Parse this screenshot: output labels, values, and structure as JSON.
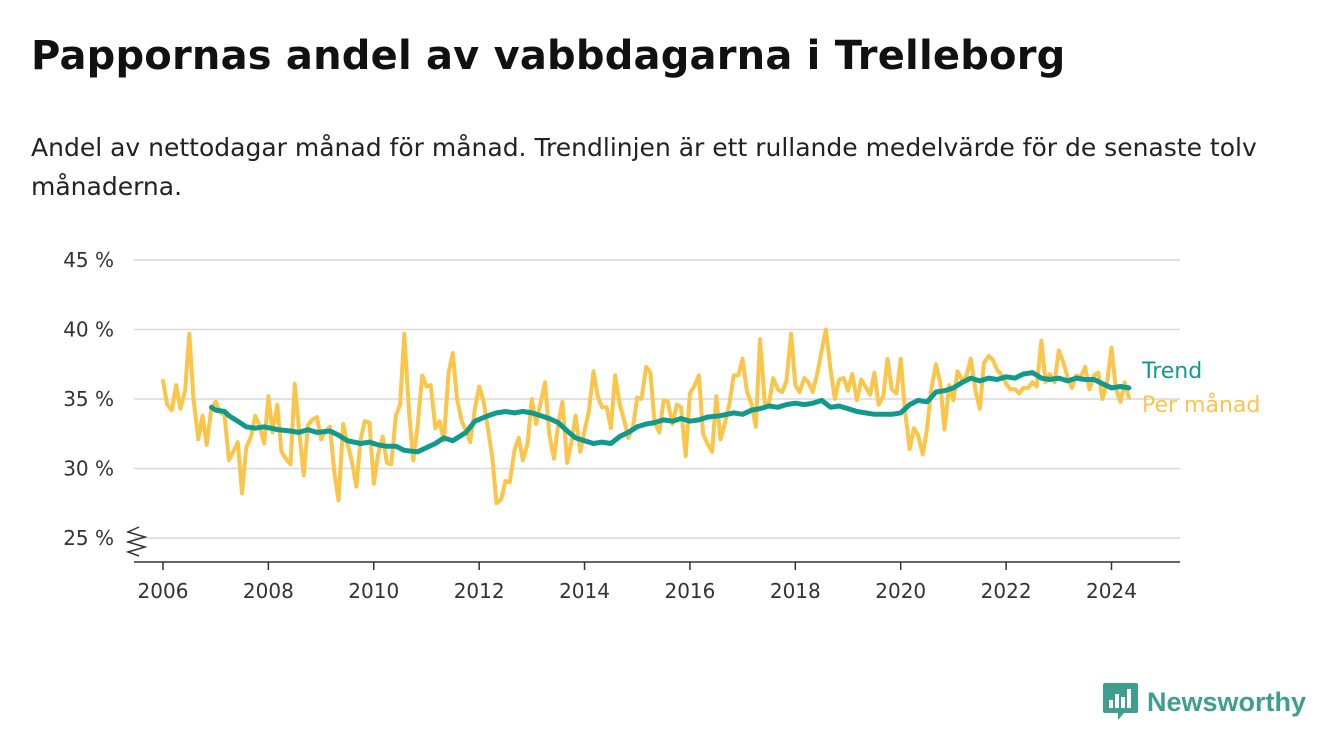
{
  "page": {
    "title": "Pappornas andel av vabbdagarna i Trelleborg",
    "subtitle": "Andel av nettodagar månad för månad. Trendlinjen är ett rullande medelvärde för de senaste tolv månaderna."
  },
  "brand": {
    "name": "Newsworthy",
    "icon": "newsworthy-logo-icon",
    "color": "#3f9e8f"
  },
  "colors": {
    "monthly": "#fbc54a",
    "trend": "#12998d",
    "grid": "#d9d9d9",
    "axis": "#333333"
  },
  "chart_data": {
    "type": "line",
    "title": "Pappornas andel av vabbdagarna i Trelleborg",
    "xlabel": "",
    "ylabel": "",
    "ylim": [
      25,
      45
    ],
    "xlim": [
      2005.45,
      2025.3
    ],
    "y_ticks": [
      25,
      30,
      35,
      40,
      45
    ],
    "y_tick_labels": [
      "25 %",
      "30 %",
      "35 %",
      "40 %",
      "45 %"
    ],
    "x_ticks": [
      2006,
      2008,
      2010,
      2012,
      2014,
      2016,
      2018,
      2020,
      2022,
      2024
    ],
    "x_tick_labels": [
      "2006",
      "2008",
      "2010",
      "2012",
      "2014",
      "2016",
      "2018",
      "2020",
      "2022",
      "2024"
    ],
    "grid": true,
    "axis_break": true,
    "legend": "inline labels at right end of lines",
    "series": [
      {
        "name": "Per månad",
        "color": "#fbc54a",
        "x": [
          2006.0,
          2006.08,
          2006.17,
          2006.25,
          2006.33,
          2006.42,
          2006.5,
          2006.58,
          2006.67,
          2006.75,
          2006.83,
          2006.92,
          2007.0,
          2007.08,
          2007.17,
          2007.25,
          2007.33,
          2007.42,
          2007.5,
          2007.58,
          2007.67,
          2007.75,
          2007.83,
          2007.92,
          2008.0,
          2008.08,
          2008.17,
          2008.25,
          2008.33,
          2008.42,
          2008.5,
          2008.58,
          2008.67,
          2008.75,
          2008.83,
          2008.92,
          2009.0,
          2009.08,
          2009.17,
          2009.25,
          2009.33,
          2009.42,
          2009.5,
          2009.58,
          2009.67,
          2009.75,
          2009.83,
          2009.92,
          2010.0,
          2010.08,
          2010.17,
          2010.25,
          2010.33,
          2010.42,
          2010.5,
          2010.58,
          2010.67,
          2010.75,
          2010.83,
          2010.92,
          2011.0,
          2011.08,
          2011.17,
          2011.25,
          2011.33,
          2011.42,
          2011.5,
          2011.58,
          2011.67,
          2011.75,
          2011.83,
          2011.92,
          2012.0,
          2012.08,
          2012.17,
          2012.25,
          2012.33,
          2012.42,
          2012.5,
          2012.58,
          2012.67,
          2012.75,
          2012.83,
          2012.92,
          2013.0,
          2013.08,
          2013.17,
          2013.25,
          2013.33,
          2013.42,
          2013.5,
          2013.58,
          2013.67,
          2013.75,
          2013.83,
          2013.92,
          2014.0,
          2014.08,
          2014.17,
          2014.25,
          2014.33,
          2014.42,
          2014.5,
          2014.58,
          2014.67,
          2014.75,
          2014.83,
          2014.92,
          2015.0,
          2015.08,
          2015.17,
          2015.25,
          2015.33,
          2015.42,
          2015.5,
          2015.58,
          2015.67,
          2015.75,
          2015.83,
          2015.92,
          2016.0,
          2016.08,
          2016.17,
          2016.25,
          2016.33,
          2016.42,
          2016.5,
          2016.58,
          2016.67,
          2016.75,
          2016.83,
          2016.92,
          2017.0,
          2017.08,
          2017.17,
          2017.25,
          2017.33,
          2017.42,
          2017.5,
          2017.58,
          2017.67,
          2017.75,
          2017.83,
          2017.92,
          2018.0,
          2018.08,
          2018.17,
          2018.25,
          2018.33,
          2018.42,
          2018.5,
          2018.58,
          2018.67,
          2018.75,
          2018.83,
          2018.92,
          2019.0,
          2019.08,
          2019.17,
          2019.25,
          2019.33,
          2019.42,
          2019.5,
          2019.58,
          2019.67,
          2019.75,
          2019.83,
          2019.92,
          2020.0,
          2020.08,
          2020.17,
          2020.25,
          2020.33,
          2020.42,
          2020.5,
          2020.58,
          2020.67,
          2020.75,
          2020.83,
          2020.92,
          2021.0,
          2021.08,
          2021.17,
          2021.25,
          2021.33,
          2021.42,
          2021.5,
          2021.58,
          2021.67,
          2021.75,
          2021.83,
          2021.92,
          2022.0,
          2022.08,
          2022.17,
          2022.25,
          2022.33,
          2022.42,
          2022.5,
          2022.58,
          2022.67,
          2022.75,
          2022.83,
          2022.92,
          2023.0,
          2023.08,
          2023.17,
          2023.25,
          2023.33,
          2023.42,
          2023.5,
          2023.58,
          2023.67,
          2023.75,
          2023.83,
          2023.92,
          2024.0,
          2024.08,
          2024.17,
          2024.25,
          2024.33
        ],
        "values": [
          36.3,
          34.6,
          34.2,
          36.0,
          34.3,
          35.6,
          39.7,
          35.0,
          32.1,
          33.8,
          31.7,
          34.4,
          34.8,
          34.1,
          33.8,
          30.6,
          31.2,
          31.9,
          28.2,
          31.5,
          32.3,
          33.8,
          33.1,
          31.8,
          35.2,
          32.6,
          34.6,
          31.2,
          30.7,
          30.3,
          36.1,
          32.9,
          29.5,
          33.1,
          33.5,
          33.7,
          32.1,
          32.7,
          33.0,
          29.8,
          27.7,
          33.2,
          31.8,
          30.6,
          28.7,
          32.1,
          33.4,
          33.3,
          28.9,
          31.0,
          32.3,
          30.4,
          30.3,
          33.8,
          34.6,
          39.7,
          34.0,
          30.6,
          33.0,
          36.7,
          35.9,
          36.0,
          32.9,
          33.4,
          32.0,
          36.9,
          38.3,
          35.0,
          33.4,
          32.7,
          31.9,
          34.3,
          35.9,
          34.9,
          32.8,
          30.8,
          27.5,
          27.8,
          29.1,
          29.0,
          31.3,
          32.2,
          30.6,
          31.8,
          35.0,
          33.2,
          34.8,
          36.2,
          32.5,
          30.7,
          33.2,
          34.8,
          30.4,
          31.9,
          33.8,
          31.2,
          32.7,
          34.1,
          37.0,
          35.2,
          34.4,
          34.4,
          32.9,
          36.7,
          34.6,
          33.5,
          32.2,
          33.0,
          35.1,
          35.0,
          37.3,
          36.9,
          33.3,
          32.6,
          34.9,
          34.8,
          33.2,
          34.6,
          34.4,
          30.9,
          35.4,
          35.9,
          36.7,
          32.5,
          31.8,
          31.2,
          35.2,
          32.1,
          33.3,
          34.7,
          36.7,
          36.7,
          37.9,
          35.6,
          34.6,
          33.0,
          39.3,
          34.7,
          34.7,
          36.5,
          35.7,
          35.5,
          36.3,
          39.7,
          36.0,
          35.5,
          36.5,
          36.2,
          35.5,
          36.9,
          38.5,
          40.0,
          37.1,
          35.0,
          36.4,
          36.5,
          35.6,
          36.8,
          34.9,
          36.4,
          35.9,
          35.3,
          36.9,
          34.6,
          35.2,
          37.9,
          35.7,
          35.4,
          37.9,
          34.2,
          31.4,
          32.9,
          32.4,
          31.0,
          32.9,
          35.7,
          37.5,
          36.2,
          32.8,
          36.0,
          34.9,
          37.0,
          36.3,
          36.7,
          37.9,
          35.6,
          34.3,
          37.6,
          38.1,
          37.8,
          37.1,
          36.7,
          36.1,
          35.7,
          35.7,
          35.4,
          35.8,
          35.8,
          36.2,
          35.9,
          39.2,
          36.2,
          36.8,
          36.2,
          38.5,
          37.7,
          36.5,
          35.8,
          36.7,
          36.6,
          37.3,
          35.7,
          36.7,
          36.9,
          35.0,
          36.3,
          38.7,
          35.8,
          34.8,
          36.2,
          35.1
        ]
      },
      {
        "name": "Trend",
        "color": "#12998d",
        "x": [
          2006.92,
          2007.0,
          2007.17,
          2007.25,
          2007.42,
          2007.58,
          2007.75,
          2007.92,
          2008.17,
          2008.42,
          2008.58,
          2008.75,
          2008.92,
          2009.17,
          2009.33,
          2009.5,
          2009.75,
          2009.92,
          2010.08,
          2010.25,
          2010.42,
          2010.58,
          2010.83,
          2011.0,
          2011.17,
          2011.33,
          2011.5,
          2011.75,
          2011.92,
          2012.17,
          2012.33,
          2012.5,
          2012.67,
          2012.83,
          2013.0,
          2013.17,
          2013.33,
          2013.5,
          2013.67,
          2013.83,
          2014.0,
          2014.17,
          2014.33,
          2014.5,
          2014.67,
          2014.83,
          2015.0,
          2015.17,
          2015.33,
          2015.5,
          2015.67,
          2015.83,
          2016.0,
          2016.17,
          2016.33,
          2016.58,
          2016.83,
          2017.0,
          2017.17,
          2017.33,
          2017.5,
          2017.67,
          2017.83,
          2018.0,
          2018.17,
          2018.33,
          2018.5,
          2018.67,
          2018.83,
          2019.0,
          2019.17,
          2019.33,
          2019.5,
          2019.67,
          2019.83,
          2020.0,
          2020.17,
          2020.33,
          2020.5,
          2020.67,
          2020.83,
          2021.0,
          2021.17,
          2021.33,
          2021.5,
          2021.67,
          2021.83,
          2022.0,
          2022.17,
          2022.33,
          2022.5,
          2022.67,
          2022.83,
          2023.0,
          2023.17,
          2023.33,
          2023.5,
          2023.67,
          2023.83,
          2024.0,
          2024.17,
          2024.33
        ],
        "values": [
          34.4,
          34.2,
          34.1,
          33.8,
          33.4,
          33.0,
          32.9,
          33.0,
          32.8,
          32.7,
          32.6,
          32.8,
          32.6,
          32.7,
          32.4,
          32.0,
          31.8,
          31.9,
          31.7,
          31.6,
          31.6,
          31.3,
          31.2,
          31.5,
          31.8,
          32.2,
          32.0,
          32.6,
          33.4,
          33.8,
          34.0,
          34.1,
          34.0,
          34.1,
          34.0,
          33.8,
          33.6,
          33.3,
          32.7,
          32.2,
          32.0,
          31.8,
          31.9,
          31.8,
          32.3,
          32.6,
          33.0,
          33.2,
          33.3,
          33.5,
          33.4,
          33.6,
          33.4,
          33.5,
          33.7,
          33.8,
          34.0,
          33.9,
          34.2,
          34.3,
          34.5,
          34.4,
          34.6,
          34.7,
          34.6,
          34.7,
          34.9,
          34.4,
          34.5,
          34.3,
          34.1,
          34.0,
          33.9,
          33.9,
          33.9,
          34.0,
          34.6,
          34.9,
          34.8,
          35.5,
          35.6,
          35.8,
          36.2,
          36.5,
          36.3,
          36.5,
          36.4,
          36.6,
          36.5,
          36.8,
          36.9,
          36.5,
          36.4,
          36.5,
          36.3,
          36.5,
          36.4,
          36.4,
          36.1,
          35.8,
          35.9,
          35.8
        ]
      }
    ]
  }
}
